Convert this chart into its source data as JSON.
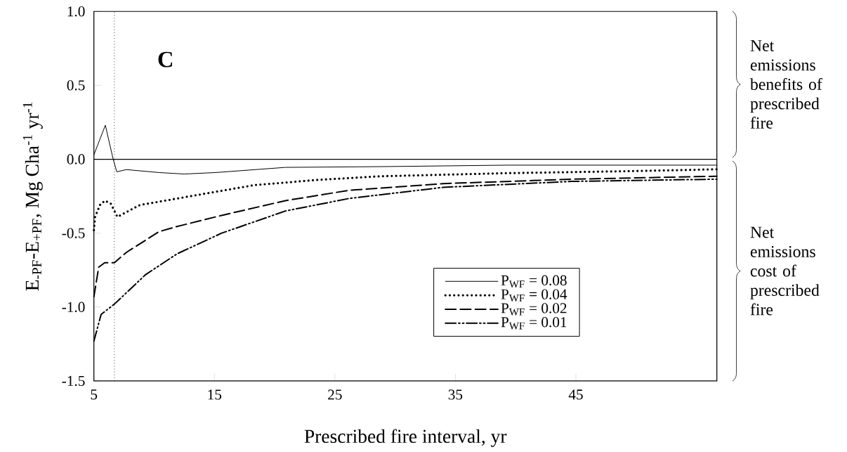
{
  "chart_data": {
    "type": "line",
    "xlabel": "Prescribed fire interval, yr",
    "ylabel": "E$_{-PF}$-E$_{+PF}$, Mg Cha$^{-1}$ yr$^{-1}$",
    "xlim": [
      5,
      56.7
    ],
    "xticks": [
      5,
      15,
      25,
      35,
      45
    ],
    "ylim": [
      -1.5,
      1.0
    ],
    "yticks": [
      {
        "value": -1.5,
        "label": "-1.5"
      },
      {
        "value": -1.0,
        "label": "-1.0"
      },
      {
        "value": -0.5,
        "label": "-0.5"
      },
      {
        "value": 0,
        "label": "0.0"
      },
      {
        "value": 0.5,
        "label": "0.5"
      },
      {
        "value": 1.0,
        "label": "1.0"
      }
    ],
    "grid": false,
    "legend": "bottom right",
    "marker": "none",
    "series": [
      {
        "name": "P$_{WF}$ = 0.08",
        "color": "#000000",
        "line_style": "solid",
        "x": [
          5,
          5.95,
          6.6,
          6.9,
          7.7,
          10.4,
          12.5,
          15.1,
          20.9,
          28.8,
          39.3,
          56.7
        ],
        "values": [
          0.03,
          0.23,
          0.0,
          -0.085,
          -0.07,
          -0.09,
          -0.1,
          -0.09,
          -0.055,
          -0.05,
          -0.04,
          -0.04
        ]
      },
      {
        "name": "P$_{WF}$ = 0.04",
        "color": "#000000",
        "line_style": "dotted",
        "x": [
          5,
          5.1,
          5.5,
          5.9,
          6.4,
          6.95,
          8.8,
          13,
          18.3,
          23.5,
          28.8,
          39.3,
          49.8,
          56.7
        ],
        "values": [
          -0.48,
          -0.39,
          -0.31,
          -0.28,
          -0.3,
          -0.39,
          -0.31,
          -0.25,
          -0.175,
          -0.14,
          -0.115,
          -0.094,
          -0.08,
          -0.068
        ]
      },
      {
        "name": "P$_{WF}$ = 0.02",
        "color": "#000000",
        "line_style": "dashed",
        "x": [
          5,
          5.4,
          5.9,
          6.7,
          7.7,
          10.4,
          11.9,
          15.6,
          20.9,
          26.2,
          34,
          44.6,
          56.7
        ],
        "values": [
          -0.93,
          -0.73,
          -0.7,
          -0.7,
          -0.63,
          -0.49,
          -0.455,
          -0.38,
          -0.28,
          -0.21,
          -0.165,
          -0.135,
          -0.115
        ]
      },
      {
        "name": "P$_{WF}$ = 0.01",
        "color": "#000000",
        "line_style": "dashdotdotted",
        "x": [
          5,
          5.6,
          6.7,
          9.3,
          11.9,
          15.6,
          20.9,
          26.2,
          34,
          44.6,
          56.7
        ],
        "values": [
          -1.23,
          -1.05,
          -0.98,
          -0.78,
          -0.64,
          -0.5,
          -0.35,
          -0.265,
          -0.19,
          -0.15,
          -0.135
        ]
      }
    ],
    "ref_lines": [
      {
        "axis": "y",
        "value": 0,
        "line_style": "solid",
        "color": "#000000"
      },
      {
        "axis": "x",
        "value": 6.7,
        "line_style": "dotted",
        "color": "#000000"
      }
    ],
    "annotations": [
      "C",
      "Net emissions benefits of prescribed fire",
      "Net emissions cost of prescribed fire"
    ]
  }
}
